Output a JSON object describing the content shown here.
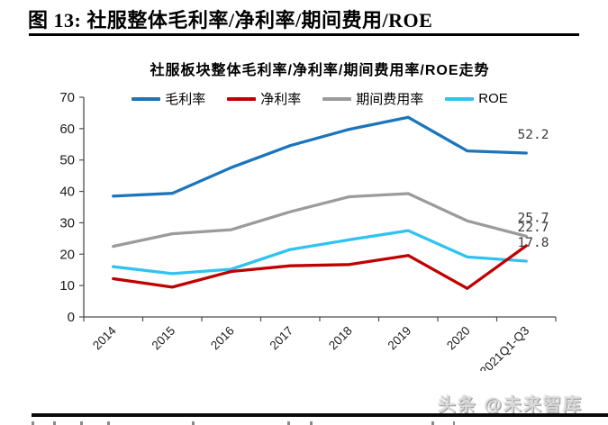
{
  "figure": {
    "label_title": "图 13:  社服整体毛利率/净利率/期间费用/ROE"
  },
  "watermark": {
    "text": "头条 @未来智库"
  },
  "chart_data": {
    "type": "line",
    "title": "社服板块整体毛利率/净利率/期间费用率/ROE走势",
    "categories": [
      "2014",
      "2015",
      "2016",
      "2017",
      "2018",
      "2019",
      "2020",
      "2021Q1-Q3"
    ],
    "series": [
      {
        "name": "毛利率",
        "color": "#1B75BC",
        "end_label": "52.2",
        "values": [
          38.5,
          39.4,
          47.6,
          54.6,
          59.8,
          63.6,
          52.9,
          52.2
        ]
      },
      {
        "name": "净利率",
        "color": "#C00000",
        "end_label": "22.7",
        "values": [
          12.2,
          9.5,
          14.5,
          16.3,
          16.7,
          19.6,
          9.1,
          22.7
        ]
      },
      {
        "name": "期间费用率",
        "color": "#9B9B9B",
        "end_label": "25.7",
        "values": [
          22.5,
          26.5,
          27.8,
          33.5,
          38.3,
          39.3,
          30.6,
          25.7
        ]
      },
      {
        "name": "ROE",
        "color": "#2EC3F0",
        "end_label": "17.8",
        "values": [
          16.0,
          13.8,
          15.2,
          21.5,
          24.6,
          27.5,
          19.1,
          17.8
        ]
      }
    ],
    "ylim": [
      0,
      70
    ],
    "ytick_step": 10,
    "grid": false,
    "legend_position": "top",
    "axis_color": "#4d4d4d",
    "data_label_color": "#3a3a3a"
  }
}
